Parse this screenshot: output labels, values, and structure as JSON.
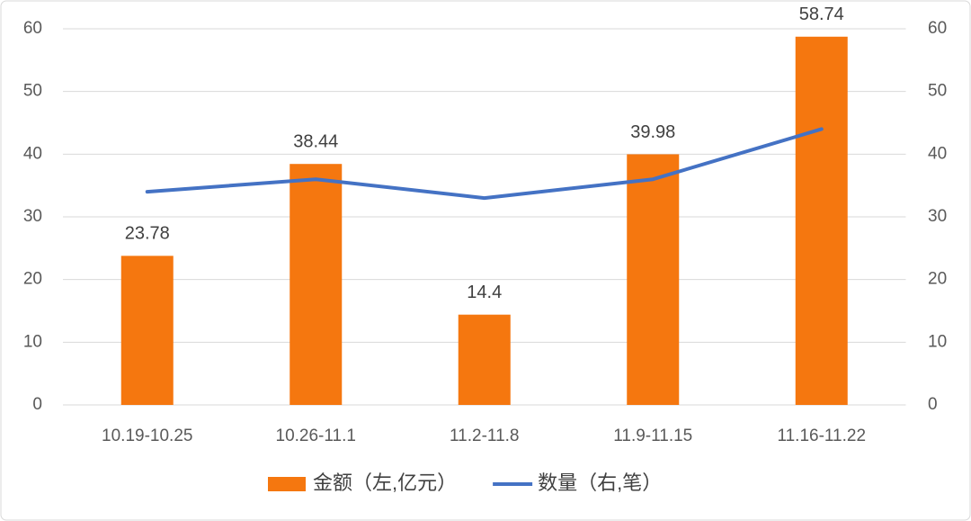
{
  "chart_data": {
    "type": "bar",
    "categories": [
      "10.19-10.25",
      "10.26-11.1",
      "11.2-11.8",
      "11.9-11.15",
      "11.16-11.22"
    ],
    "series": [
      {
        "name": "金额（左,亿元）",
        "type": "bar",
        "color": "#f5770f",
        "values": [
          23.78,
          38.44,
          14.4,
          39.98,
          58.74
        ]
      },
      {
        "name": "数量（右,笔）",
        "type": "line",
        "axis": "y2",
        "color": "#4472c4",
        "values": [
          34,
          36,
          33,
          36,
          44
        ]
      }
    ],
    "ylim": [
      0,
      60
    ],
    "yticks": [
      0,
      10,
      20,
      30,
      40,
      50,
      60
    ],
    "y2lim": [
      0,
      60
    ],
    "y2ticks": [
      0,
      10,
      20,
      30,
      40,
      50,
      60
    ],
    "grid": true,
    "legend": "bottom"
  }
}
